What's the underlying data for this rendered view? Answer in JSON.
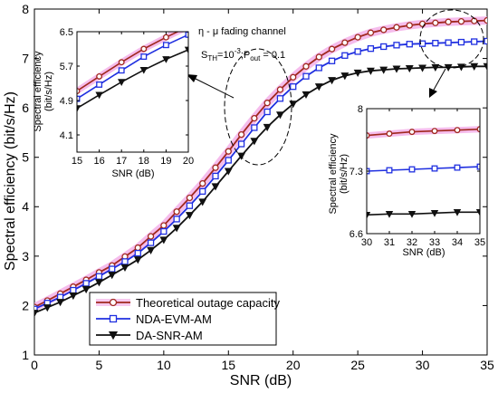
{
  "chart_data": [
    {
      "type": "line",
      "id": "main",
      "xlabel": "SNR (dB)",
      "ylabel": "Spectral efficiency (bit/s/Hz)",
      "xlim": [
        0,
        35
      ],
      "ylim": [
        1,
        8
      ],
      "xticks": [
        "0",
        "5",
        "10",
        "15",
        "20",
        "25",
        "30",
        "35"
      ],
      "yticks": [
        "1",
        "2",
        "3",
        "4",
        "5",
        "6",
        "7",
        "8"
      ],
      "grid": false,
      "legend_position": "bottom-left",
      "x": [
        0,
        1,
        2,
        3,
        4,
        5,
        6,
        7,
        8,
        9,
        10,
        11,
        12,
        13,
        14,
        15,
        16,
        17,
        18,
        19,
        20,
        21,
        22,
        23,
        24,
        25,
        26,
        27,
        28,
        29,
        30,
        31,
        32,
        33,
        34,
        35
      ],
      "series": [
        {
          "name": "Theoretical outage capacity",
          "color": "#a0281e",
          "marker": "circle",
          "values": [
            1.97,
            2.1,
            2.24,
            2.38,
            2.52,
            2.67,
            2.81,
            2.99,
            3.17,
            3.4,
            3.62,
            3.9,
            4.18,
            4.47,
            4.79,
            5.12,
            5.46,
            5.79,
            6.1,
            6.37,
            6.62,
            6.84,
            7.03,
            7.19,
            7.32,
            7.43,
            7.52,
            7.58,
            7.63,
            7.67,
            7.7,
            7.72,
            7.74,
            7.75,
            7.76,
            7.77
          ]
        },
        {
          "name": "NDA-EVM-AM",
          "color": "#1f2fe0",
          "marker": "square",
          "values": [
            1.93,
            2.05,
            2.17,
            2.31,
            2.45,
            2.59,
            2.74,
            2.89,
            3.06,
            3.27,
            3.5,
            3.75,
            4.02,
            4.31,
            4.62,
            4.94,
            5.27,
            5.6,
            5.92,
            6.19,
            6.43,
            6.64,
            6.81,
            6.95,
            7.06,
            7.14,
            7.2,
            7.24,
            7.27,
            7.29,
            7.3,
            7.31,
            7.32,
            7.33,
            7.34,
            7.35
          ]
        },
        {
          "name": "DA-SNR-AM",
          "color": "#111111",
          "marker": "triangle-down",
          "values": [
            1.85,
            1.96,
            2.07,
            2.2,
            2.33,
            2.47,
            2.62,
            2.77,
            2.93,
            3.12,
            3.33,
            3.57,
            3.83,
            4.1,
            4.41,
            4.72,
            5.03,
            5.33,
            5.61,
            5.86,
            6.08,
            6.27,
            6.43,
            6.56,
            6.65,
            6.71,
            6.75,
            6.77,
            6.79,
            6.8,
            6.81,
            6.82,
            6.82,
            6.83,
            6.84,
            6.84
          ]
        }
      ]
    },
    {
      "type": "line",
      "id": "inset_left",
      "xlabel": "SNR (dB)",
      "ylabel": "Spectral efficiency (bit/s/Hz)",
      "xlim": [
        15,
        20
      ],
      "ylim": [
        3.7,
        6.5
      ],
      "xticks": [
        "15",
        "16",
        "17",
        "18",
        "19",
        "20"
      ],
      "yticks": [
        "4.1",
        "4.9",
        "5.7",
        "6.5"
      ],
      "x": [
        15,
        16,
        17,
        18,
        19,
        20
      ],
      "series": [
        {
          "color": "#a0281e",
          "marker": "circle",
          "values": [
            5.12,
            5.46,
            5.79,
            6.1,
            6.37,
            6.62
          ]
        },
        {
          "color": "#1f2fe0",
          "marker": "square",
          "values": [
            4.94,
            5.27,
            5.6,
            5.92,
            6.19,
            6.43
          ]
        },
        {
          "color": "#111111",
          "marker": "triangle-down",
          "values": [
            4.72,
            5.03,
            5.33,
            5.61,
            5.86,
            6.08
          ]
        }
      ]
    },
    {
      "type": "line",
      "id": "inset_right",
      "xlabel": "SNR (dB)",
      "ylabel": "Spectral efficiency (bit/s/Hz)",
      "xlim": [
        30,
        35
      ],
      "ylim": [
        6.6,
        8
      ],
      "xticks": [
        "30",
        "31",
        "32",
        "33",
        "34",
        "35"
      ],
      "yticks": [
        "6.6",
        "7.3",
        "8"
      ],
      "x": [
        30,
        31,
        32,
        33,
        34,
        35
      ],
      "series": [
        {
          "color": "#a0281e",
          "marker": "circle",
          "values": [
            7.7,
            7.72,
            7.74,
            7.75,
            7.76,
            7.77
          ]
        },
        {
          "color": "#1f2fe0",
          "marker": "square",
          "values": [
            7.3,
            7.31,
            7.32,
            7.33,
            7.34,
            7.35
          ]
        },
        {
          "color": "#111111",
          "marker": "triangle-down",
          "values": [
            6.81,
            6.82,
            6.82,
            6.83,
            6.84,
            6.84
          ]
        }
      ]
    }
  ],
  "annotation": {
    "title_eta": "η",
    "title_dash": " - ",
    "title_mu": "μ",
    "title_rest": " fading channel",
    "s_main": "S",
    "s_sub": "TH",
    "eq1": "=10",
    "exp1": "-3",
    "sep": ";P",
    "p_sub": "out",
    "eq2": " = 0.1"
  },
  "colors": {
    "highlight": "#f2a6e6",
    "ellipse": "#000000"
  }
}
